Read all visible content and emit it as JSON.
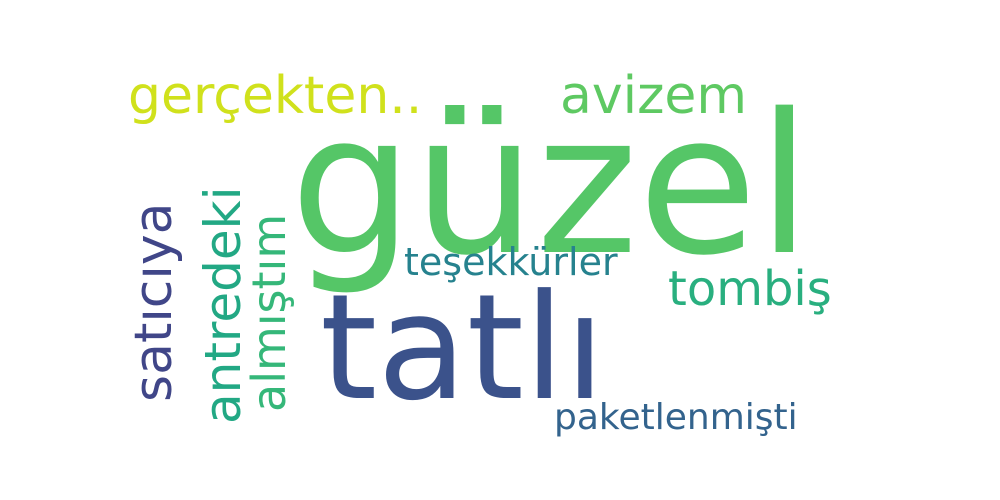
{
  "word_cloud": {
    "words": [
      {
        "id": "guzel",
        "text": "güzel",
        "color": "#55c667"
      },
      {
        "id": "tatli",
        "text": "tatlı",
        "color": "#3b528b"
      },
      {
        "id": "gercekten",
        "text": "gerçekten..",
        "color": "#d0e11c"
      },
      {
        "id": "avizem",
        "text": "avizem",
        "color": "#5ec962"
      },
      {
        "id": "tombis",
        "text": "tombiş",
        "color": "#29af7f"
      },
      {
        "id": "tesekkurler",
        "text": "teşekkürler",
        "color": "#26828e"
      },
      {
        "id": "paketlenmisti",
        "text": "paketlenmişti",
        "color": "#33638d"
      },
      {
        "id": "saticiya",
        "text": "satıcıya",
        "color": "#404688"
      },
      {
        "id": "antredeki",
        "text": "antredeki",
        "color": "#22a884"
      },
      {
        "id": "almistim",
        "text": "almıştım",
        "color": "#35b779"
      }
    ]
  }
}
